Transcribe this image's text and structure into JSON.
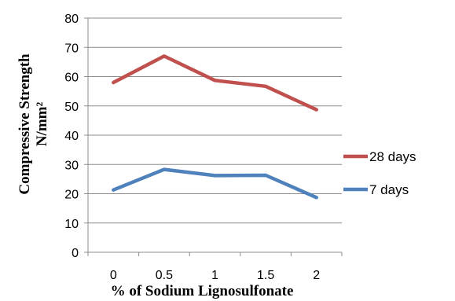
{
  "chart_data": {
    "type": "line",
    "categories": [
      "0",
      "0.5",
      "1",
      "1.5",
      "2"
    ],
    "xlabel": "% of Sodium Lignosulfonate",
    "ylabel_line1": "Compressive Strength",
    "ylabel_line2": "N/mm²",
    "ylim": [
      0,
      80
    ],
    "yticks": [
      "0",
      "10",
      "20",
      "30",
      "40",
      "50",
      "60",
      "70",
      "80"
    ],
    "grid": true,
    "legend_position": "right",
    "series": [
      {
        "name": "28 days",
        "color": "#C0504D",
        "values": [
          58,
          67,
          58.7,
          56.7,
          48.7
        ]
      },
      {
        "name": "7 days",
        "color": "#4F81BD",
        "values": [
          21.3,
          28.3,
          26.2,
          26.3,
          18.7
        ]
      }
    ]
  }
}
